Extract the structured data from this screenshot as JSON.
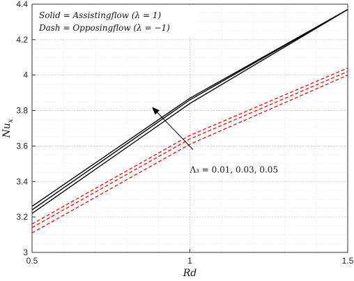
{
  "chart_data": {
    "type": "line",
    "title": "",
    "xlabel": "Rd",
    "ylabel": "Nu_x",
    "xlim": [
      0.5,
      1.5
    ],
    "ylim": [
      3.0,
      4.4
    ],
    "grid": true,
    "x_ticks": [
      "0.5",
      "1",
      "1.5"
    ],
    "y_ticks": [
      "3",
      "3.2",
      "3.4",
      "3.6",
      "3.8",
      "4",
      "4.2",
      "4.4"
    ],
    "legend": {
      "position": "top-left",
      "lines": [
        "Solid = Assistingflow (λ = 1)",
        "Dash = Opposingflow (λ = −1)"
      ]
    },
    "annotation": {
      "text": "Λ₃ = 0.01, 0.03, 0.05",
      "arrow_from": [
        1.01,
        3.58
      ],
      "arrow_to": [
        0.88,
        3.82
      ],
      "text_at": [
        1.0,
        3.45
      ]
    },
    "series": [
      {
        "style": "solid",
        "color": "#000000",
        "x": [
          0.5,
          1.0,
          1.5
        ],
        "y": [
          3.26,
          3.87,
          4.37
        ]
      },
      {
        "style": "solid",
        "color": "#000000",
        "x": [
          0.5,
          1.0,
          1.5
        ],
        "y": [
          3.24,
          3.86,
          4.37
        ]
      },
      {
        "style": "solid",
        "color": "#000000",
        "x": [
          0.5,
          1.0,
          1.5
        ],
        "y": [
          3.22,
          3.84,
          4.37
        ]
      },
      {
        "style": "dashed",
        "color": "#d42020",
        "x": [
          0.5,
          1.0,
          1.5
        ],
        "y": [
          3.16,
          3.66,
          4.04
        ]
      },
      {
        "style": "dashed",
        "color": "#d42020",
        "x": [
          0.5,
          1.0,
          1.5
        ],
        "y": [
          3.14,
          3.64,
          4.02
        ]
      },
      {
        "style": "dashed",
        "color": "#d42020",
        "x": [
          0.5,
          1.0,
          1.5
        ],
        "y": [
          3.11,
          3.61,
          4.0
        ]
      }
    ]
  }
}
